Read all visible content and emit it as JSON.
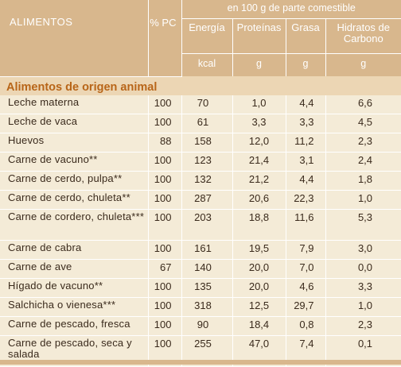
{
  "header": {
    "alimentos": "ALIMENTOS",
    "pc": "% PC",
    "per100": "en 100 g de parte comestible",
    "columns": [
      "Energía",
      "Proteínas",
      "Grasa",
      "Hidratos de Carbono"
    ],
    "units": [
      "kcal",
      "g",
      "g",
      "g"
    ]
  },
  "section_title": "Alimentos de origen animal",
  "rows": [
    {
      "name": "Leche materna",
      "pc": "100",
      "energia": "70",
      "proteinas": "1,0",
      "grasa": "4,4",
      "hc": "6,6"
    },
    {
      "name": "Leche de vaca",
      "pc": "100",
      "energia": "61",
      "proteinas": "3,3",
      "grasa": "3,3",
      "hc": "4,5"
    },
    {
      "name": "Huevos",
      "pc": "88",
      "energia": "158",
      "proteinas": "12,0",
      "grasa": "11,2",
      "hc": "2,3"
    },
    {
      "name": "Carne de vacuno**",
      "pc": "100",
      "energia": "123",
      "proteinas": "21,4",
      "grasa": "3,1",
      "hc": "2,4"
    },
    {
      "name": "Carne de cerdo, pulpa**",
      "pc": "100",
      "energia": "132",
      "proteinas": "21,2",
      "grasa": "4,4",
      "hc": "1,8"
    },
    {
      "name": "Carne de cerdo, chuleta**",
      "pc": "100",
      "energia": "287",
      "proteinas": "20,6",
      "grasa": "22,3",
      "hc": "1,0"
    },
    {
      "name": "Carne de cordero, chuleta***",
      "pc": "100",
      "energia": "203",
      "proteinas": "18,8",
      "grasa": "11,6",
      "hc": "5,3"
    },
    {
      "name": "Carne de cabra",
      "pc": "100",
      "energia": "161",
      "proteinas": "19,5",
      "grasa": "7,9",
      "hc": "3,0"
    },
    {
      "name": "Carne de ave",
      "pc": "67",
      "energia": "140",
      "proteinas": "20,0",
      "grasa": "7,0",
      "hc": "0,0"
    },
    {
      "name": "Hígado de vacuno**",
      "pc": "100",
      "energia": "135",
      "proteinas": "20,0",
      "grasa": "4,6",
      "hc": "3,3"
    },
    {
      "name": "Salchicha o vienesa***",
      "pc": "100",
      "energia": "318",
      "proteinas": "12,5",
      "grasa": "29,7",
      "hc": "1,0"
    },
    {
      "name": "Carne de pescado, fresca",
      "pc": "100",
      "energia": "90",
      "proteinas": "18,4",
      "grasa": "0,8",
      "hc": "2,3"
    },
    {
      "name": "Carne de pescado, seca y salada",
      "pc": "100",
      "energia": "255",
      "proteinas": "47,0",
      "grasa": "7,4",
      "hc": "0,1"
    }
  ]
}
